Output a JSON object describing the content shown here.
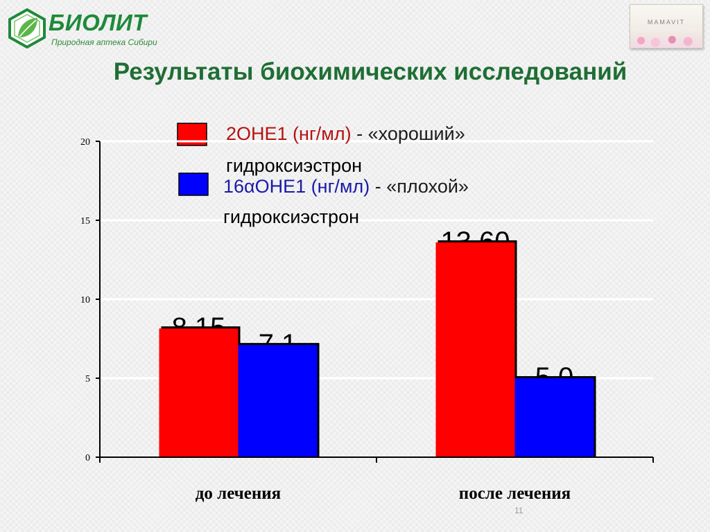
{
  "header": {
    "logo_title": "БИОЛИТ",
    "logo_subtitle": "Природная аптека Сибири",
    "product_name": "MAMAVIT"
  },
  "slide": {
    "title": "Результаты биохимических исследований",
    "page_number": "11"
  },
  "legend": [
    {
      "color": "#ff0000",
      "label_main": "2OHE1 (нг/мл)",
      "label_sep": " - ",
      "label_desc": "«хороший»",
      "label_desc2": "гидроксиэстрон"
    },
    {
      "color": "#0000ff",
      "label_main": "16αOHE1 (нг/мл)",
      "label_sep": " - ",
      "label_desc": "«плохой»",
      "label_desc2": "гидроксиэстрон"
    }
  ],
  "chart_data": {
    "type": "bar",
    "categories": [
      "до лечения",
      "после лечения"
    ],
    "series": [
      {
        "name": "2OHE1 (нг/мл) - «хороший» гидроксиэстрон",
        "color": "#ff0000",
        "values": [
          8.15,
          13.6
        ],
        "labels": [
          "8,15",
          "13,60"
        ]
      },
      {
        "name": "16αOHE1 (нг/мл) - «плохой» гидроксиэстрон",
        "color": "#0000ff",
        "values": [
          7.1,
          5.0
        ],
        "labels": [
          "7,1",
          "5,0"
        ]
      }
    ],
    "ylim": [
      0,
      20
    ],
    "yticks": [
      "0",
      "5",
      "10",
      "15",
      "20"
    ],
    "xlabel": "",
    "ylabel": "",
    "grid": true,
    "legend": "top"
  }
}
